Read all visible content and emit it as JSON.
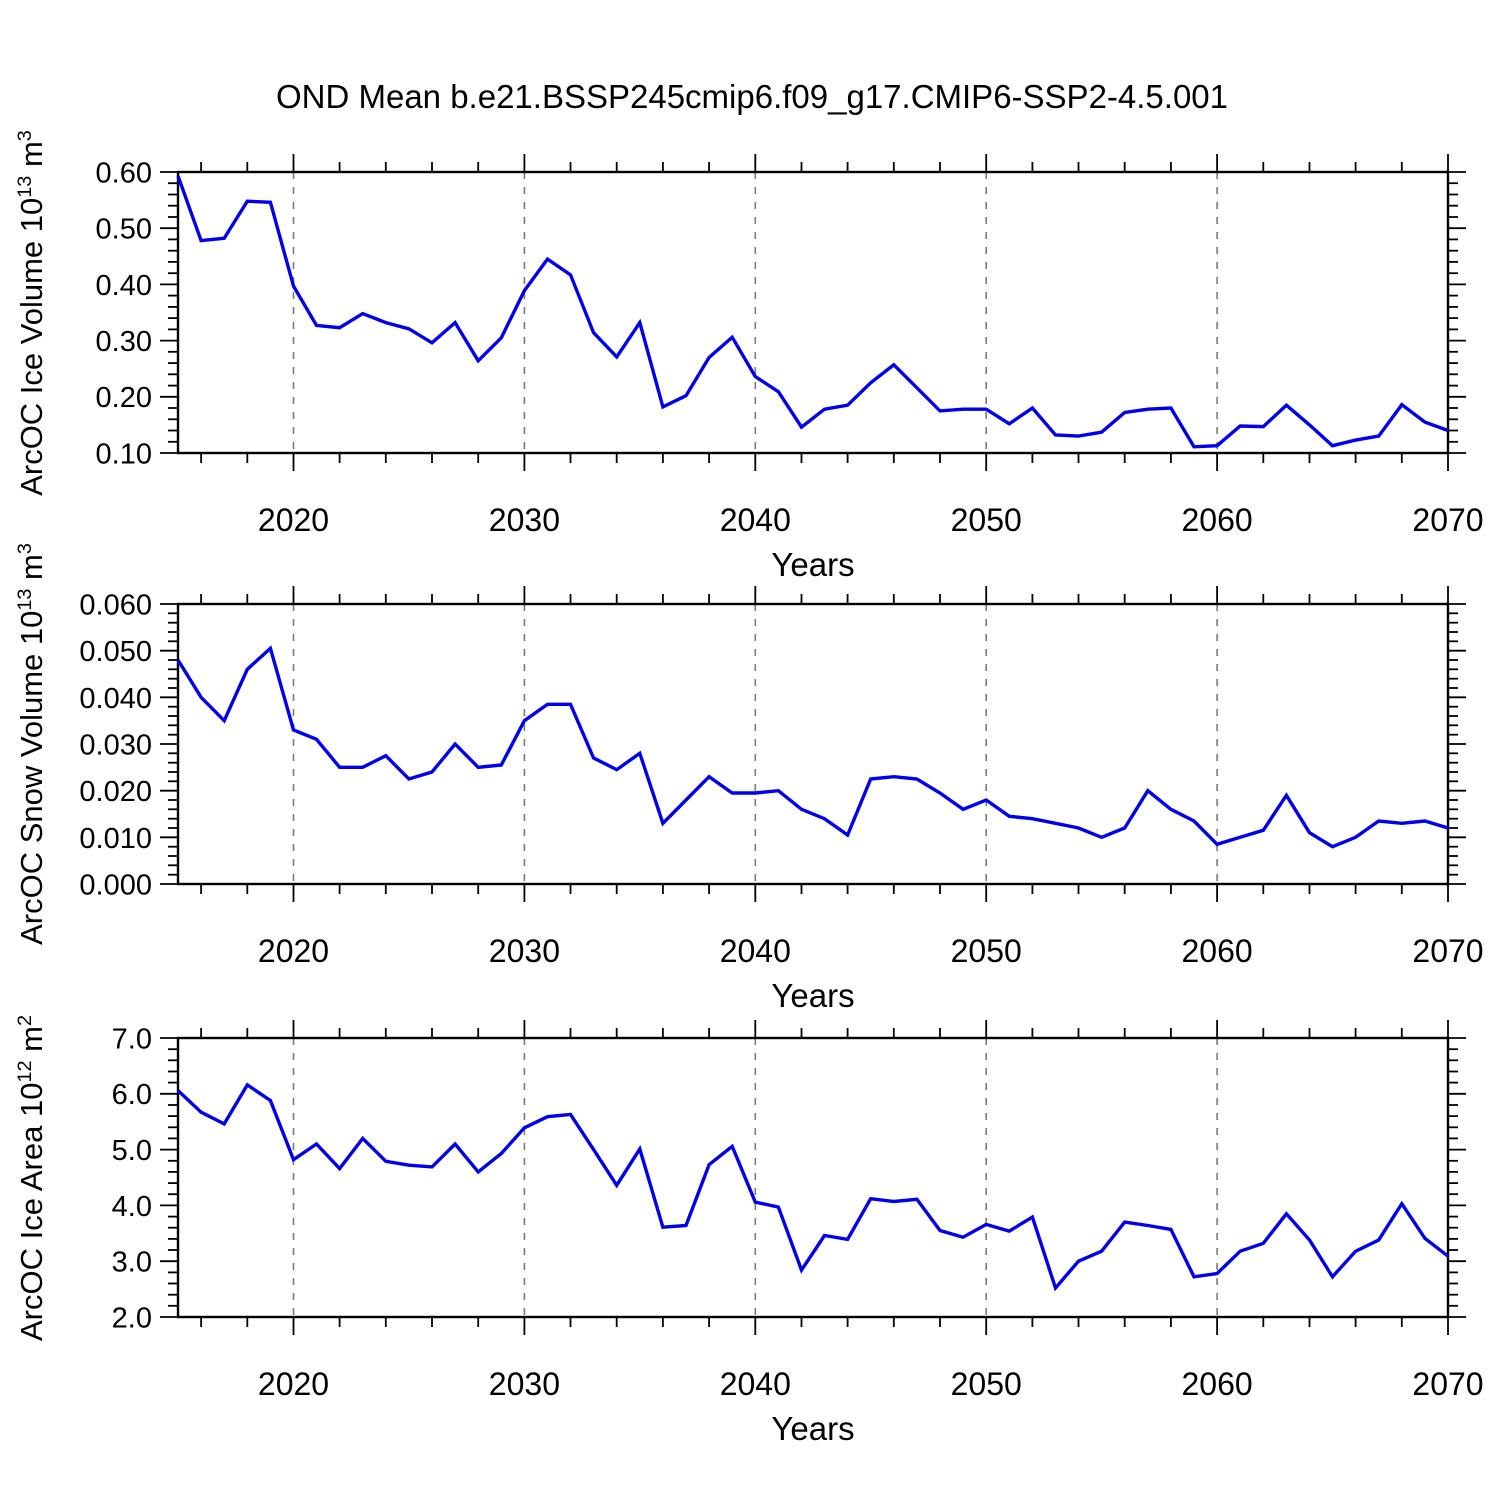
{
  "title": "OND Mean b.e21.BSSP245cmip6.f09_g17.CMIP6-SSP2-4.5.001",
  "colors": {
    "line": "#0000EE",
    "grid": "#7B7B7B",
    "frame": "#000000",
    "text": "#000000",
    "background": "#FFFFFF"
  },
  "x_axis": {
    "label": "Years",
    "range": [
      2015,
      2070
    ],
    "major_ticks": [
      2020,
      2030,
      2040,
      2050,
      2060,
      2070
    ],
    "major_tick_labels": [
      "2020",
      "2030",
      "2040",
      "2050",
      "2060",
      "2070"
    ],
    "minor_tick_step_years": 2,
    "gridlines_at": [
      2020,
      2030,
      2040,
      2050,
      2060
    ],
    "gridline_style": "dashed"
  },
  "chart_data": [
    {
      "type": "line",
      "name": "ice-volume",
      "ylabel": "ArcOC Ice Volume 10^13 m^3",
      "ylabel_parts": [
        {
          "t": "ArcOC Ice Volume 10"
        },
        {
          "t": "13",
          "sup": true
        },
        {
          "t": " m"
        },
        {
          "t": "3",
          "sup": true
        }
      ],
      "xlabel": "Years",
      "ylim": [
        0.1,
        0.6
      ],
      "yticks": {
        "values": [
          0.1,
          0.2,
          0.3,
          0.4,
          0.5,
          0.6
        ],
        "labels": [
          "0.10",
          "0.20",
          "0.30",
          "0.40",
          "0.50",
          "0.60"
        ]
      },
      "y_minor_step": 0.02,
      "x_start": 2015,
      "x_step": 1,
      "values": [
        0.593,
        0.478,
        0.482,
        0.548,
        0.546,
        0.397,
        0.327,
        0.323,
        0.348,
        0.332,
        0.321,
        0.296,
        0.332,
        0.264,
        0.305,
        0.389,
        0.445,
        0.417,
        0.314,
        0.271,
        0.332,
        0.182,
        0.202,
        0.27,
        0.306,
        0.236,
        0.209,
        0.146,
        0.178,
        0.185,
        0.225,
        0.257,
        0.216,
        0.175,
        0.178,
        0.178,
        0.152,
        0.18,
        0.132,
        0.13,
        0.137,
        0.172,
        0.178,
        0.18,
        0.111,
        0.113,
        0.148,
        0.147,
        0.185,
        0.15,
        0.113,
        0.123,
        0.13,
        0.186,
        0.155,
        0.14
      ]
    },
    {
      "type": "line",
      "name": "snow-volume",
      "ylabel": "ArcOC Snow Volume 10^13 m^3",
      "ylabel_parts": [
        {
          "t": "ArcOC Snow Volume 10"
        },
        {
          "t": "13",
          "sup": true
        },
        {
          "t": " m"
        },
        {
          "t": "3",
          "sup": true
        }
      ],
      "xlabel": "Years",
      "ylim": [
        0.0,
        0.06
      ],
      "yticks": {
        "values": [
          0.0,
          0.01,
          0.02,
          0.03,
          0.04,
          0.05,
          0.06
        ],
        "labels": [
          "0.000",
          "0.010",
          "0.020",
          "0.030",
          "0.040",
          "0.050",
          "0.060"
        ]
      },
      "y_minor_step": 0.002,
      "x_start": 2015,
      "x_step": 1,
      "values": [
        0.048,
        0.04,
        0.035,
        0.046,
        0.0505,
        0.033,
        0.031,
        0.025,
        0.025,
        0.0275,
        0.0225,
        0.024,
        0.03,
        0.025,
        0.0255,
        0.035,
        0.0385,
        0.0385,
        0.027,
        0.0245,
        0.028,
        0.013,
        0.018,
        0.023,
        0.0195,
        0.0195,
        0.02,
        0.016,
        0.014,
        0.0105,
        0.0225,
        0.023,
        0.0225,
        0.0195,
        0.016,
        0.018,
        0.0145,
        0.014,
        0.013,
        0.012,
        0.01,
        0.012,
        0.02,
        0.016,
        0.0135,
        0.0085,
        0.01,
        0.0115,
        0.019,
        0.011,
        0.008,
        0.01,
        0.0135,
        0.013,
        0.0135,
        0.012
      ]
    },
    {
      "type": "line",
      "name": "ice-area",
      "ylabel": "ArcOC Ice Area 10^12 m^2",
      "ylabel_parts": [
        {
          "t": "ArcOC Ice Area 10"
        },
        {
          "t": "12",
          "sup": true
        },
        {
          "t": " m"
        },
        {
          "t": "2",
          "sup": true
        }
      ],
      "xlabel": "Years",
      "ylim": [
        2.0,
        7.0
      ],
      "yticks": {
        "values": [
          2.0,
          3.0,
          4.0,
          5.0,
          6.0,
          7.0
        ],
        "labels": [
          "2.0",
          "3.0",
          "4.0",
          "5.0",
          "6.0",
          "7.0"
        ]
      },
      "y_minor_step": 0.2,
      "x_start": 2015,
      "x_step": 1,
      "values": [
        6.06,
        5.67,
        5.46,
        6.16,
        5.88,
        4.82,
        5.1,
        4.66,
        5.2,
        4.79,
        4.72,
        4.69,
        5.1,
        4.6,
        4.93,
        5.39,
        5.59,
        5.63,
        5.0,
        4.36,
        5.01,
        3.61,
        3.64,
        4.73,
        5.06,
        4.06,
        3.97,
        2.84,
        3.46,
        3.39,
        4.12,
        4.07,
        4.11,
        3.55,
        3.43,
        3.66,
        3.54,
        3.79,
        2.52,
        3.0,
        3.18,
        3.7,
        3.64,
        3.57,
        2.72,
        2.78,
        3.18,
        3.32,
        3.85,
        3.38,
        2.72,
        3.18,
        3.38,
        4.03,
        3.41,
        3.09
      ]
    }
  ]
}
